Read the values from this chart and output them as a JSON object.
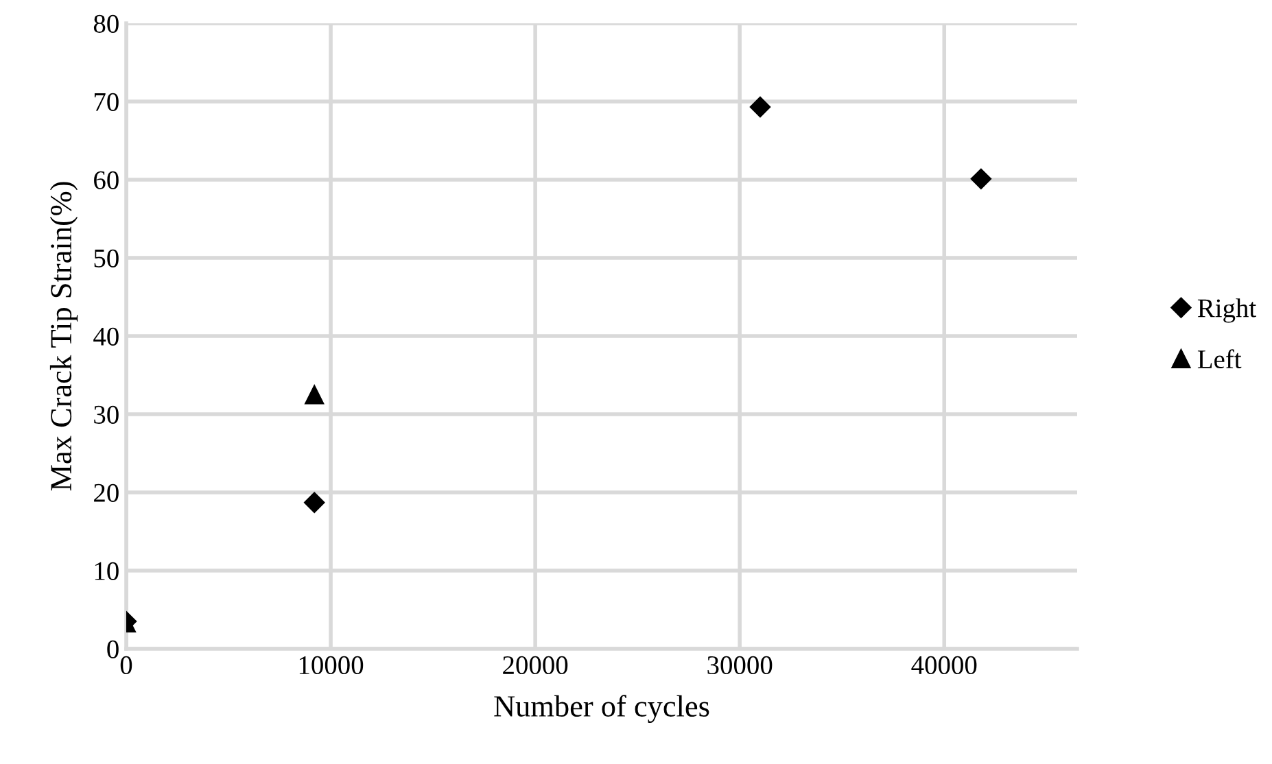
{
  "chart_data": {
    "type": "scatter",
    "xlabel": "Number of cycles",
    "ylabel": "Max Crack Tip Strain(%)",
    "xlim": [
      0,
      46500
    ],
    "xticks": [
      0,
      10000,
      20000,
      30000,
      40000
    ],
    "ylim": [
      0,
      80
    ],
    "yticks": [
      0,
      10,
      20,
      30,
      40,
      50,
      60,
      70,
      80
    ],
    "grid": true,
    "legend": "right",
    "series": [
      {
        "name": "Right",
        "color": "#000000",
        "marker": "diamond",
        "x": [
          0,
          9200,
          31000,
          41800
        ],
        "values": [
          3.5,
          18.7,
          69.3,
          60.1
        ]
      },
      {
        "name": "Left",
        "color": "#000000",
        "marker": "triangle",
        "x": [
          0,
          9200
        ],
        "values": [
          3.3,
          32.5
        ]
      }
    ]
  }
}
